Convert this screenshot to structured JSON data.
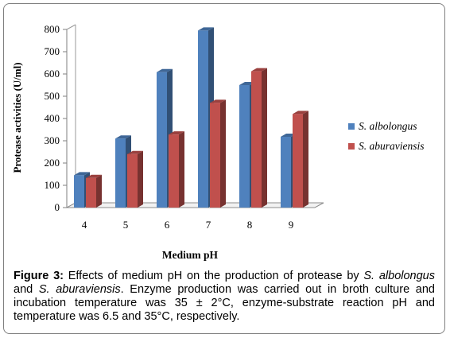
{
  "chart_data": {
    "type": "bar",
    "categories": [
      "4",
      "5",
      "6",
      "7",
      "8",
      "9"
    ],
    "series": [
      {
        "name": "S. albolongus",
        "values": [
          145,
          310,
          608,
          795,
          550,
          318
        ],
        "color": "#4f81bd"
      },
      {
        "name": "S. aburaviensis",
        "values": [
          133,
          240,
          328,
          470,
          612,
          420
        ],
        "color": "#c0504d"
      }
    ],
    "xlabel": "Medium pH",
    "ylabel": "Protease activities (U/ml)",
    "ylim": [
      0,
      800
    ],
    "yticks": [
      "0",
      "100",
      "200",
      "300",
      "400",
      "500",
      "600",
      "700",
      "800"
    ],
    "grid": false,
    "legend_position": "right",
    "style": "3d"
  },
  "caption": {
    "label": "Figure 3:",
    "part1": " Effects of medium pH on the production of protease by ",
    "species1": "S. albolongus",
    "part2": " and ",
    "species2": "S. aburaviensis",
    "part3": ". Enzyme production was carried out in broth culture and incubation temperature was 35 ± 2°C, enzyme-substrate reaction pH and temperature was 6.5 and 35°C, respectively."
  }
}
